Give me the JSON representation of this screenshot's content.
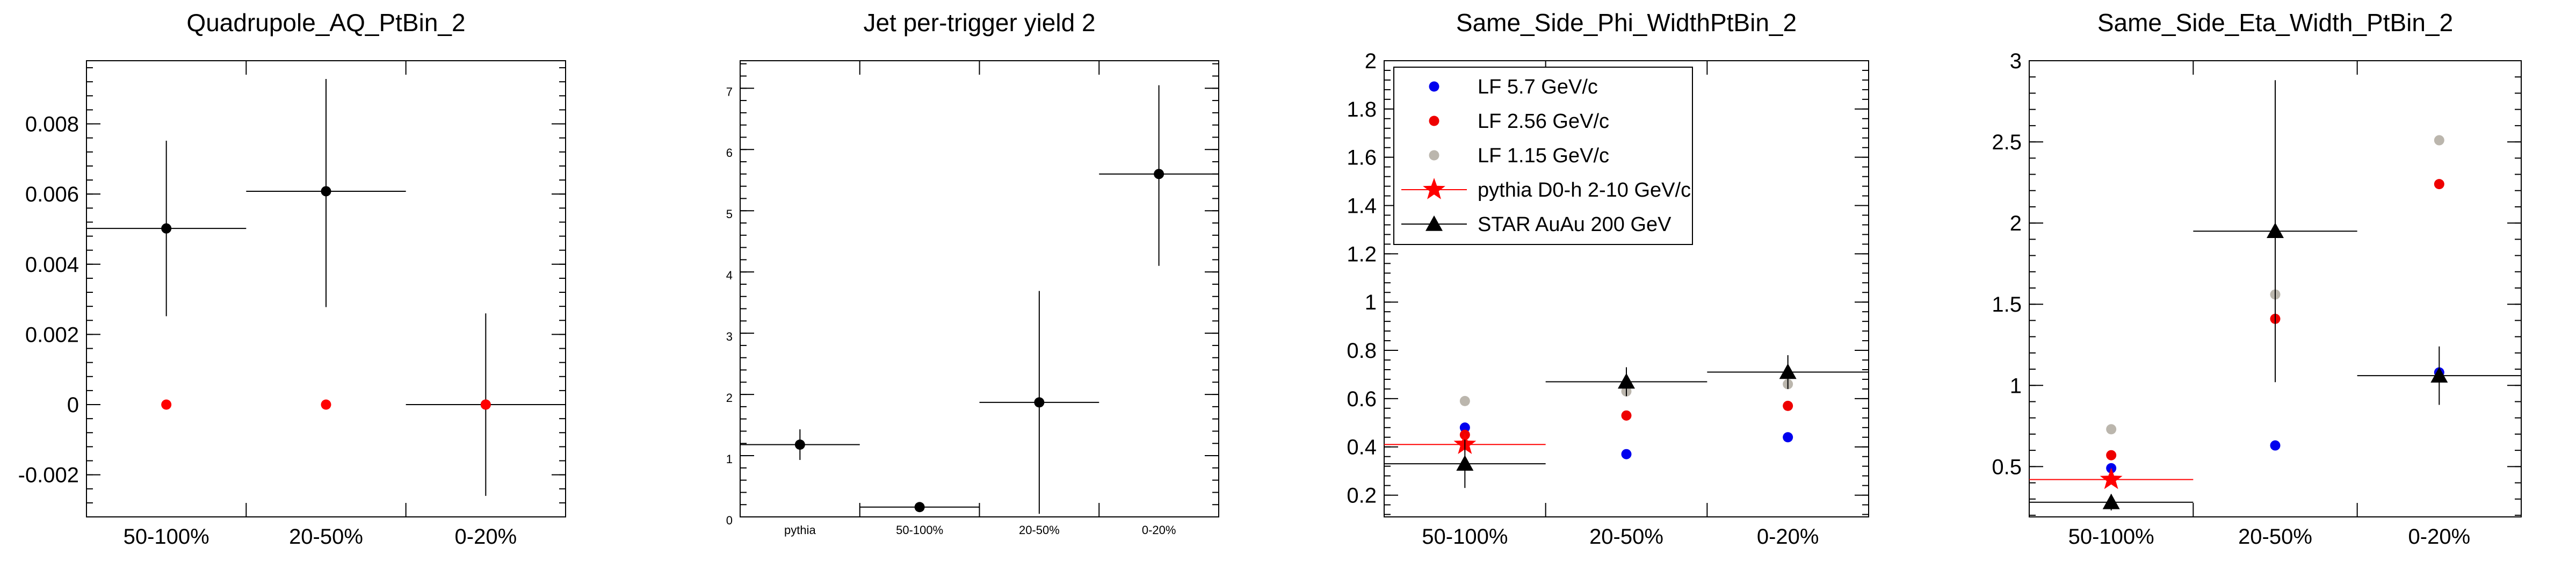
{
  "chart_data": [
    {
      "type": "scatter",
      "title": "Quadrupole_AQ_PtBin_2",
      "categories": [
        "50-100%",
        "20-50%",
        "0-20%"
      ],
      "ylim": [
        -0.0032,
        0.0098
      ],
      "yticks": [
        -0.002,
        0,
        0.002,
        0.004,
        0.006,
        0.008
      ],
      "ytick_labels": [
        "-0.002",
        "0",
        "0.002",
        "0.004",
        "0.006",
        "0.008"
      ],
      "series": [
        {
          "color": "#000000",
          "marker": "circle",
          "points": [
            {
              "cat": 0,
              "y": 0.00502,
              "yerr": [
                0.0025,
                0.0025
              ],
              "xerr": true
            },
            {
              "cat": 1,
              "y": 0.00608,
              "yerr": [
                0.0033,
                0.0032
              ],
              "xerr": true
            },
            {
              "cat": 2,
              "y": 0.0,
              "yerr": [
                0.0026,
                0.0026
              ],
              "xerr": true
            }
          ]
        },
        {
          "color": "#ff0000",
          "marker": "circle",
          "points": [
            {
              "cat": 0,
              "y": 0.0
            },
            {
              "cat": 1,
              "y": 0.0
            },
            {
              "cat": 2,
              "y": 0.0
            }
          ]
        }
      ]
    },
    {
      "type": "scatter",
      "title": "Jet per-trigger yield 2",
      "categories": [
        "pythia",
        "50-100%",
        "20-50%",
        "0-20%"
      ],
      "small_ticks": true,
      "ylim": [
        0,
        7.45
      ],
      "yticks": [
        0,
        1,
        2,
        3,
        4,
        5,
        6,
        7
      ],
      "ytick_labels": [
        "0",
        "1",
        "2",
        "3",
        "4",
        "5",
        "6",
        "7"
      ],
      "series": [
        {
          "color": "#000000",
          "marker": "circle",
          "points": [
            {
              "cat": 0,
              "y": 1.18,
              "yerr": [
                0.25,
                0.25
              ],
              "xerr": true
            },
            {
              "cat": 1,
              "y": 0.16,
              "yerr": [
                0.06,
                0.06
              ],
              "xerr": true
            },
            {
              "cat": 2,
              "y": 1.87,
              "yerr": [
                1.82,
                1.82
              ],
              "xerr": true
            },
            {
              "cat": 3,
              "y": 5.6,
              "yerr": [
                1.5,
                1.45
              ],
              "xerr": true
            }
          ]
        }
      ]
    },
    {
      "type": "scatter",
      "title": "Same_Side_Phi_WidthPtBin_2",
      "categories": [
        "50-100%",
        "20-50%",
        "0-20%"
      ],
      "ylim": [
        0.11,
        2.0
      ],
      "yticks": [
        0.2,
        0.4,
        0.6,
        0.8,
        1,
        1.2,
        1.4,
        1.6,
        1.8,
        2
      ],
      "ytick_labels": [
        "0.2",
        "0.4",
        "0.6",
        "0.8",
        "1",
        "1.2",
        "1.4",
        "1.6",
        "1.8",
        "2"
      ],
      "legend": {
        "position": "top-left",
        "entries": [
          {
            "label": "LF 5.7 GeV/c",
            "color": "#0000ee",
            "marker": "circle"
          },
          {
            "label": "LF 2.56 GeV/c",
            "color": "#ee0000",
            "marker": "circle"
          },
          {
            "label": "LF 1.15 GeV/c",
            "color": "#bbb6ad",
            "marker": "circle"
          },
          {
            "label": "pythia D0-h 2-10 GeV/c",
            "color": "#ff0000",
            "marker": "star",
            "line": true
          },
          {
            "label": "STAR AuAu 200 GeV",
            "color": "#000000",
            "marker": "triangle",
            "line": true
          }
        ]
      },
      "series": [
        {
          "name": "LF 5.7 GeV/c",
          "color": "#0000ee",
          "marker": "circle",
          "points": [
            {
              "cat": 0,
              "y": 0.48
            },
            {
              "cat": 1,
              "y": 0.37
            },
            {
              "cat": 2,
              "y": 0.44
            }
          ]
        },
        {
          "name": "LF 2.56 GeV/c",
          "color": "#ee0000",
          "marker": "circle",
          "points": [
            {
              "cat": 0,
              "y": 0.45
            },
            {
              "cat": 1,
              "y": 0.53
            },
            {
              "cat": 2,
              "y": 0.57
            }
          ]
        },
        {
          "name": "LF 1.15 GeV/c",
          "color": "#bbb6ad",
          "marker": "circle",
          "points": [
            {
              "cat": 0,
              "y": 0.59
            },
            {
              "cat": 1,
              "y": 0.63
            },
            {
              "cat": 2,
              "y": 0.66
            }
          ]
        },
        {
          "name": "pythia D0-h 2-10 GeV/c",
          "color": "#ff0000",
          "marker": "star",
          "points": [
            {
              "cat": 0,
              "y": 0.41,
              "yerr": [
                0.03,
                0.03
              ],
              "xerr": true
            }
          ]
        },
        {
          "name": "STAR AuAu 200 GeV",
          "color": "#000000",
          "marker": "triangle",
          "points": [
            {
              "cat": 0,
              "y": 0.33,
              "yerr": [
                0.1,
                0.1
              ],
              "xerr": true
            },
            {
              "cat": 1,
              "y": 0.67,
              "yerr": [
                0.06,
                0.06
              ],
              "xerr": true
            },
            {
              "cat": 2,
              "y": 0.71,
              "yerr": [
                0.07,
                0.07
              ],
              "xerr": true
            }
          ]
        }
      ]
    },
    {
      "type": "scatter",
      "title": "Same_Side_Eta_Width_PtBin_2",
      "categories": [
        "50-100%",
        "20-50%",
        "0-20%"
      ],
      "ylim": [
        0.19,
        3.0
      ],
      "yticks": [
        0.5,
        1,
        1.5,
        2,
        2.5,
        3
      ],
      "ytick_labels": [
        "0.5",
        "1",
        "1.5",
        "2",
        "2.5",
        "3"
      ],
      "series": [
        {
          "name": "LF 5.7 GeV/c",
          "color": "#0000ee",
          "marker": "circle",
          "points": [
            {
              "cat": 0,
              "y": 0.49
            },
            {
              "cat": 1,
              "y": 0.63
            },
            {
              "cat": 2,
              "y": 1.08
            }
          ]
        },
        {
          "name": "LF 2.56 GeV/c",
          "color": "#ee0000",
          "marker": "circle",
          "points": [
            {
              "cat": 0,
              "y": 0.57
            },
            {
              "cat": 1,
              "y": 1.41
            },
            {
              "cat": 2,
              "y": 2.24
            }
          ]
        },
        {
          "name": "LF 1.15 GeV/c",
          "color": "#bbb6ad",
          "marker": "circle",
          "points": [
            {
              "cat": 0,
              "y": 0.73
            },
            {
              "cat": 1,
              "y": 1.56
            },
            {
              "cat": 2,
              "y": 2.51
            }
          ]
        },
        {
          "name": "pythia D0-h 2-10 GeV/c",
          "color": "#ff0000",
          "marker": "star",
          "points": [
            {
              "cat": 0,
              "y": 0.42,
              "yerr": [
                0.03,
                0.03
              ],
              "xerr": true
            }
          ]
        },
        {
          "name": "STAR AuAu 200 GeV",
          "color": "#000000",
          "marker": "triangle",
          "points": [
            {
              "cat": 0,
              "y": 0.28,
              "yerr": [
                0.05,
                0.05
              ],
              "xerr": true
            },
            {
              "cat": 1,
              "y": 1.95,
              "yerr": [
                0.93,
                0.93
              ],
              "xerr": true
            },
            {
              "cat": 2,
              "y": 1.06,
              "yerr": [
                0.18,
                0.18
              ],
              "xerr": true
            }
          ]
        }
      ]
    }
  ]
}
